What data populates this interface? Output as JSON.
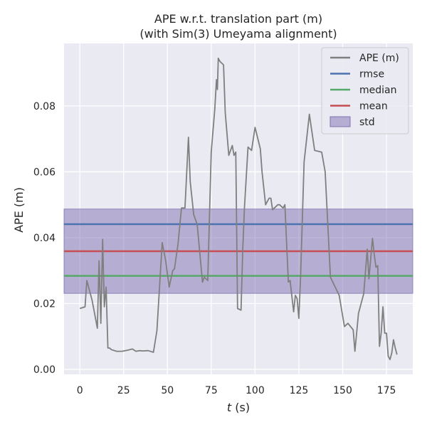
{
  "chart_data": {
    "type": "line",
    "title_line1": "APE w.r.t. translation part (m)",
    "title_line2": "(with Sim(3) Umeyama alignment)",
    "xlabel_var": "t",
    "xlabel_unit": " (s)",
    "ylabel": "APE (m)",
    "xlim": [
      -9,
      190
    ],
    "ylim": [
      -0.0015,
      0.099
    ],
    "xticks": [
      0,
      25,
      50,
      75,
      100,
      125,
      150,
      175
    ],
    "yticks": [
      0.0,
      0.02,
      0.04,
      0.06,
      0.08
    ],
    "ytick_labels": [
      "0.00",
      "0.02",
      "0.04",
      "0.06",
      "0.08"
    ],
    "grid": true,
    "legend_position": "top-right",
    "colors": {
      "background": "#eaeaf2",
      "grid": "#ffffff",
      "ape": "#7f7f7f",
      "rmse": "#4c72b0",
      "median": "#55a868",
      "mean": "#c44e52",
      "std": "#8172b2"
    },
    "stats": {
      "rmse": 0.0441,
      "median": 0.0284,
      "mean": 0.0359,
      "std_low": 0.0231,
      "std_high": 0.0487
    },
    "legend": [
      {
        "label": "APE (m)",
        "kind": "line",
        "color": "#7f7f7f"
      },
      {
        "label": "rmse",
        "kind": "line",
        "color": "#4c72b0"
      },
      {
        "label": "median",
        "kind": "line",
        "color": "#55a868"
      },
      {
        "label": "mean",
        "kind": "line",
        "color": "#c44e52"
      },
      {
        "label": "std",
        "kind": "patch",
        "color": "#8172b2"
      }
    ],
    "series": [
      {
        "name": "APE (m)",
        "x": [
          0,
          3,
          4,
          7,
          10,
          11,
          12,
          13,
          14,
          15,
          16,
          17,
          18,
          21,
          24,
          27,
          30,
          32,
          34,
          36,
          39,
          42,
          44,
          47,
          49,
          51,
          53,
          54,
          56,
          58,
          60,
          62,
          63,
          65,
          67,
          70,
          71,
          73,
          75,
          77,
          78,
          78.5,
          79,
          80,
          82,
          83,
          85,
          87,
          88,
          89,
          90,
          92,
          93,
          94,
          96,
          98,
          99,
          100,
          103,
          104,
          106,
          108,
          109,
          110,
          111,
          113,
          114,
          116,
          117,
          119,
          120,
          122,
          123,
          124,
          125,
          126,
          128,
          131,
          134,
          138,
          140,
          143,
          148,
          151,
          153,
          156,
          157,
          159,
          162,
          164,
          165,
          167,
          168,
          169,
          170,
          171,
          172,
          173,
          174,
          175,
          176,
          177,
          178,
          179,
          180,
          181
        ],
        "values": [
          0.0185,
          0.019,
          0.027,
          0.021,
          0.0125,
          0.033,
          0.014,
          0.0395,
          0.019,
          0.025,
          0.0065,
          0.0065,
          0.006,
          0.0055,
          0.0055,
          0.0058,
          0.0062,
          0.0055,
          0.0057,
          0.0056,
          0.0057,
          0.0052,
          0.0118,
          0.0385,
          0.033,
          0.025,
          0.03,
          0.0305,
          0.038,
          0.049,
          0.049,
          0.0705,
          0.057,
          0.047,
          0.044,
          0.0265,
          0.028,
          0.027,
          0.066,
          0.079,
          0.088,
          0.085,
          0.0945,
          0.0935,
          0.0925,
          0.078,
          0.065,
          0.068,
          0.065,
          0.066,
          0.0185,
          0.018,
          0.037,
          0.0495,
          0.0675,
          0.0665,
          0.07,
          0.0735,
          0.067,
          0.06,
          0.05,
          0.052,
          0.052,
          0.0485,
          0.049,
          0.05,
          0.05,
          0.049,
          0.05,
          0.0265,
          0.027,
          0.0175,
          0.0225,
          0.0215,
          0.0155,
          0.0285,
          0.063,
          0.0775,
          0.0665,
          0.066,
          0.06,
          0.028,
          0.0225,
          0.013,
          0.014,
          0.012,
          0.0055,
          0.017,
          0.023,
          0.0365,
          0.0275,
          0.0398,
          0.035,
          0.031,
          0.0315,
          0.007,
          0.0112,
          0.019,
          0.011,
          0.011,
          0.004,
          0.003,
          0.005,
          0.009,
          0.0065,
          0.0045
        ]
      }
    ]
  }
}
